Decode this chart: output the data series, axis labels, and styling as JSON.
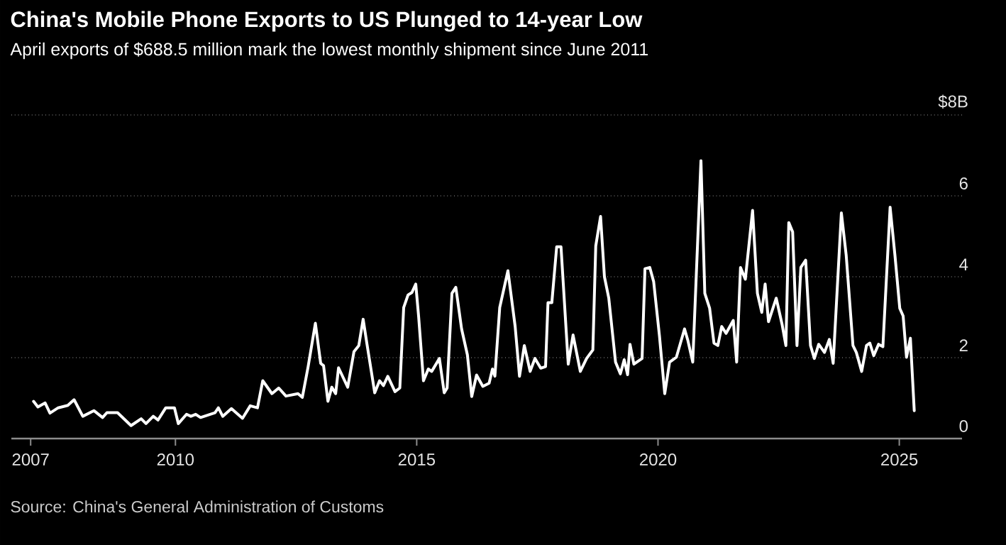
{
  "chart_data": {
    "type": "line",
    "title": "China's Mobile Phone Exports to US Plunged to 14-year Low",
    "subtitle": "April exports of $688.5 million mark the lowest monthly shipment since June 2011",
    "annotations": [
      "Source: China's General Administration of Customs"
    ],
    "x": [
      2007.06,
      2007.15,
      2007.3,
      2007.4,
      2007.57,
      2007.77,
      2007.9,
      2008.08,
      2008.31,
      2008.49,
      2008.58,
      2008.8,
      2009.08,
      2009.29,
      2009.39,
      2009.54,
      2009.64,
      2009.8,
      2009.98,
      2010.06,
      2010.23,
      2010.32,
      2010.42,
      2010.52,
      2010.82,
      2010.89,
      2010.98,
      2011.16,
      2011.39,
      2011.55,
      2011.7,
      2011.81,
      2012.0,
      2012.14,
      2012.29,
      2012.54,
      2012.63,
      2012.75,
      2012.9,
      2013.01,
      2013.07,
      2013.16,
      2013.24,
      2013.32,
      2013.38,
      2013.57,
      2013.7,
      2013.8,
      2013.89,
      2013.97,
      2014.13,
      2014.23,
      2014.31,
      2014.4,
      2014.55,
      2014.65,
      2014.73,
      2014.82,
      2014.9,
      2014.98,
      2015.04,
      2015.14,
      2015.24,
      2015.31,
      2015.47,
      2015.57,
      2015.63,
      2015.73,
      2015.81,
      2015.93,
      2016.05,
      2016.14,
      2016.24,
      2016.37,
      2016.5,
      2016.57,
      2016.62,
      2016.72,
      2016.89,
      2017.04,
      2017.13,
      2017.23,
      2017.35,
      2017.45,
      2017.57,
      2017.67,
      2017.72,
      2017.8,
      2017.9,
      2017.99,
      2018.14,
      2018.24,
      2018.39,
      2018.52,
      2018.65,
      2018.71,
      2018.81,
      2018.89,
      2018.98,
      2019.12,
      2019.22,
      2019.3,
      2019.37,
      2019.42,
      2019.5,
      2019.67,
      2019.73,
      2019.83,
      2019.91,
      2020.03,
      2020.14,
      2020.24,
      2020.38,
      2020.55,
      2020.62,
      2020.72,
      2020.89,
      2020.97,
      2021.07,
      2021.16,
      2021.24,
      2021.32,
      2021.41,
      2021.56,
      2021.63,
      2021.71,
      2021.81,
      2021.96,
      2022.06,
      2022.15,
      2022.22,
      2022.29,
      2022.45,
      2022.57,
      2022.65,
      2022.71,
      2022.79,
      2022.88,
      2022.96,
      2023.06,
      2023.16,
      2023.24,
      2023.33,
      2023.45,
      2023.55,
      2023.63,
      2023.8,
      2023.9,
      2024.04,
      2024.11,
      2024.22,
      2024.32,
      2024.39,
      2024.47,
      2024.57,
      2024.66,
      2024.81,
      2024.91,
      2025.01,
      2025.08,
      2025.15,
      2025.23,
      2025.31
    ],
    "series": [
      {
        "color": "#ffffff",
        "values": [
          0.92,
          0.78,
          0.88,
          0.63,
          0.76,
          0.82,
          0.96,
          0.55,
          0.69,
          0.52,
          0.64,
          0.64,
          0.32,
          0.49,
          0.37,
          0.55,
          0.46,
          0.76,
          0.76,
          0.37,
          0.6,
          0.55,
          0.6,
          0.52,
          0.64,
          0.76,
          0.55,
          0.74,
          0.5,
          0.81,
          0.76,
          1.43,
          1.11,
          1.25,
          1.05,
          1.11,
          1.02,
          1.78,
          2.85,
          1.86,
          1.8,
          0.92,
          1.27,
          1.11,
          1.75,
          1.27,
          2.15,
          2.3,
          2.95,
          2.33,
          1.13,
          1.43,
          1.31,
          1.54,
          1.16,
          1.25,
          3.24,
          3.55,
          3.61,
          3.82,
          3.01,
          1.43,
          1.72,
          1.66,
          1.98,
          1.13,
          1.25,
          3.59,
          3.74,
          2.71,
          2.07,
          1.04,
          1.57,
          1.29,
          1.37,
          1.72,
          1.54,
          3.24,
          4.15,
          2.77,
          1.54,
          2.3,
          1.66,
          1.98,
          1.74,
          1.78,
          3.36,
          3.36,
          4.74,
          4.74,
          1.84,
          2.56,
          1.66,
          1.98,
          2.19,
          4.76,
          5.49,
          4.0,
          3.47,
          1.89,
          1.6,
          1.95,
          1.58,
          2.33,
          1.84,
          1.98,
          4.2,
          4.23,
          3.88,
          2.54,
          1.11,
          1.89,
          2.01,
          2.71,
          2.42,
          1.89,
          6.87,
          3.59,
          3.22,
          2.36,
          2.3,
          2.77,
          2.6,
          2.92,
          1.89,
          4.23,
          3.94,
          5.64,
          3.59,
          3.12,
          3.82,
          2.89,
          3.47,
          2.83,
          2.3,
          5.34,
          5.11,
          2.3,
          4.23,
          4.41,
          2.3,
          1.98,
          2.33,
          2.13,
          2.45,
          1.86,
          5.58,
          4.53,
          2.3,
          2.13,
          1.66,
          2.3,
          2.36,
          2.05,
          2.33,
          2.27,
          5.72,
          4.53,
          3.22,
          3.03,
          2.01,
          2.48,
          0.69
        ]
      }
    ],
    "xlim": [
      2006.6,
      2026.3
    ],
    "xticks": [
      2007,
      2010,
      2015,
      2020,
      2025
    ],
    "ylim": [
      0,
      8
    ],
    "yticks": [
      0,
      2,
      4,
      6,
      {
        "value": 8,
        "label": "$8B"
      }
    ],
    "grid": "y",
    "line_style": "solid"
  }
}
